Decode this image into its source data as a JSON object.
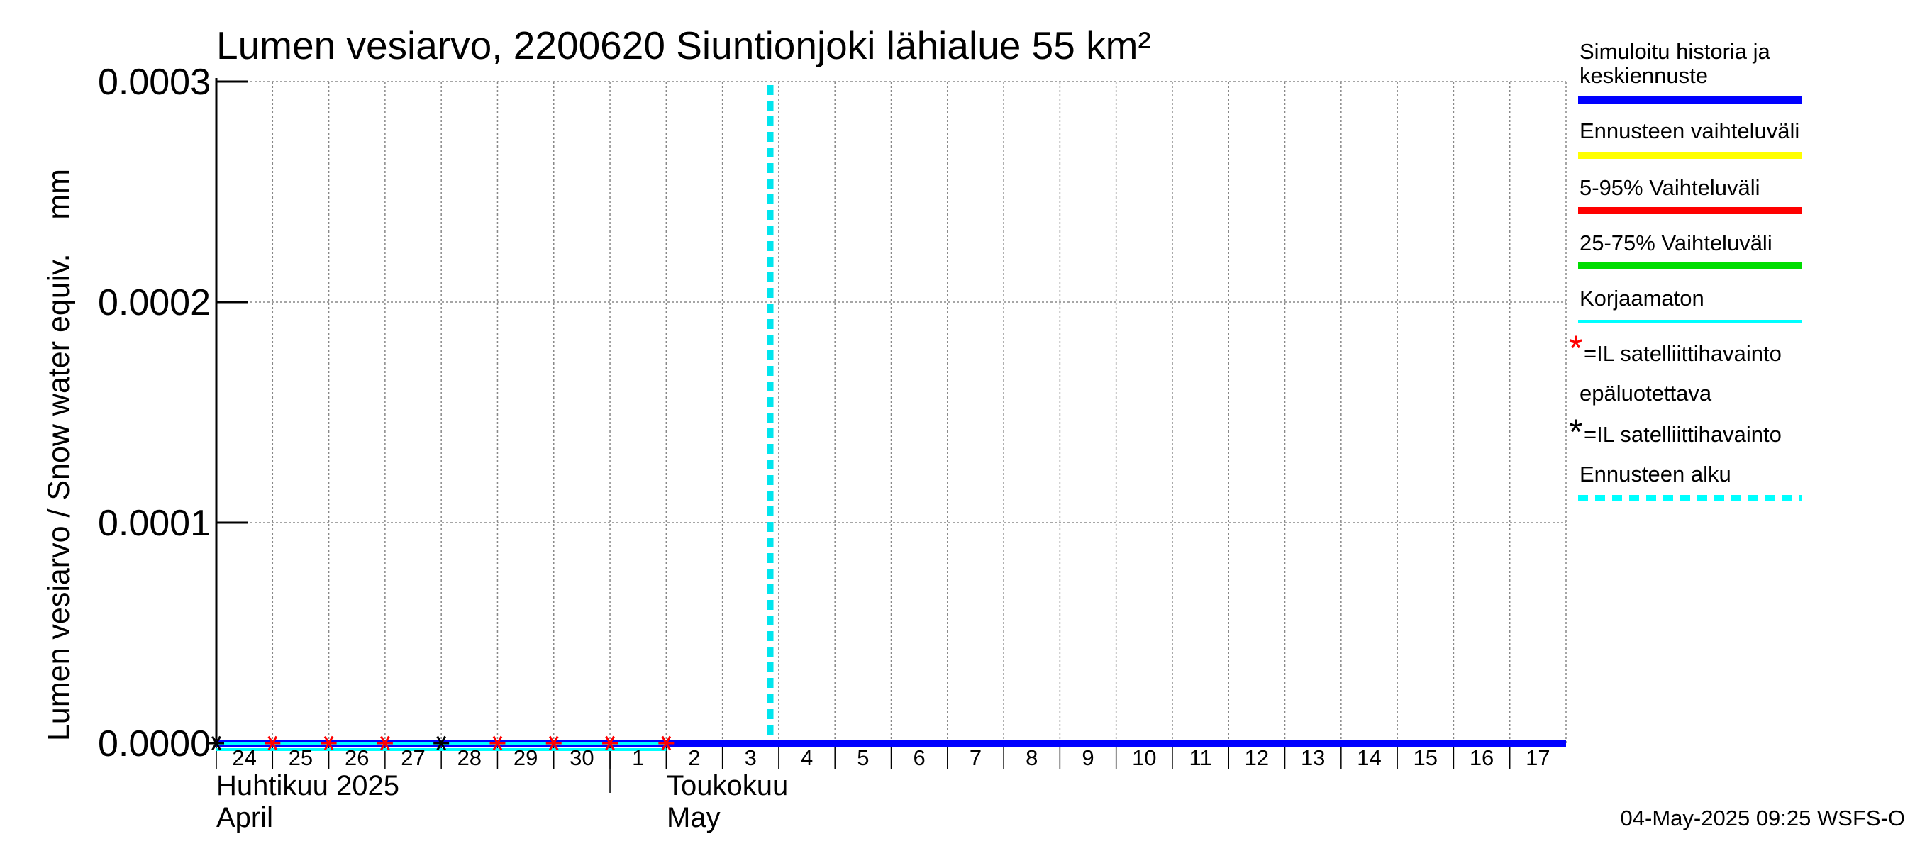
{
  "chart_data": {
    "type": "line",
    "title": "Lumen vesiarvo, 2200620 Siuntionjoki lähialue 55 km²",
    "ylabel": "Lumen vesiarvo / Snow water equiv.    mm",
    "ylim": [
      0,
      0.0003
    ],
    "yticks": [
      "0.0000",
      "0.0001",
      "0.0002",
      "0.0003"
    ],
    "ytick_values": [
      0,
      0.0001,
      0.0002,
      0.0003
    ],
    "x_start": "2025-04-24",
    "x_end": "2025-05-18",
    "day_ticks": [
      {
        "date": "2025-04-24",
        "label": "24"
      },
      {
        "date": "2025-04-25",
        "label": "25"
      },
      {
        "date": "2025-04-26",
        "label": "26"
      },
      {
        "date": "2025-04-27",
        "label": "27"
      },
      {
        "date": "2025-04-28",
        "label": "28"
      },
      {
        "date": "2025-04-29",
        "label": "29"
      },
      {
        "date": "2025-04-30",
        "label": "30"
      },
      {
        "date": "2025-05-01",
        "label": "1"
      },
      {
        "date": "2025-05-02",
        "label": "2"
      },
      {
        "date": "2025-05-03",
        "label": "3"
      },
      {
        "date": "2025-05-04",
        "label": "4"
      },
      {
        "date": "2025-05-05",
        "label": "5"
      },
      {
        "date": "2025-05-06",
        "label": "6"
      },
      {
        "date": "2025-05-07",
        "label": "7"
      },
      {
        "date": "2025-05-08",
        "label": "8"
      },
      {
        "date": "2025-05-09",
        "label": "9"
      },
      {
        "date": "2025-05-10",
        "label": "10"
      },
      {
        "date": "2025-05-11",
        "label": "11"
      },
      {
        "date": "2025-05-12",
        "label": "12"
      },
      {
        "date": "2025-05-13",
        "label": "13"
      },
      {
        "date": "2025-05-14",
        "label": "14"
      },
      {
        "date": "2025-05-15",
        "label": "15"
      },
      {
        "date": "2025-05-16",
        "label": "16"
      },
      {
        "date": "2025-05-17",
        "label": "17"
      }
    ],
    "months": [
      {
        "label_fi": "Huhtikuu  2025",
        "label_en": "April",
        "date": "2025-04-24"
      },
      {
        "label_fi": "Toukokuu",
        "label_en": "May",
        "date": "2025-05-01"
      }
    ],
    "grid": true,
    "forecast_start": "2025-05-04",
    "series": [
      {
        "name": "Simuloitu historia ja keskiennuste",
        "color": "#0000ff",
        "x": [
          "2025-04-24",
          "2025-05-18"
        ],
        "y": [
          0,
          0
        ]
      },
      {
        "name": "Korjaamaton",
        "color": "#00ffff",
        "x": [
          "2025-04-24",
          "2025-05-02"
        ],
        "y": [
          0,
          0
        ]
      }
    ],
    "observations_reliable": {
      "color": "#ff0000",
      "x": [
        "2025-04-25",
        "2025-04-26",
        "2025-04-27",
        "2025-04-29",
        "2025-04-30",
        "2025-05-01",
        "2025-05-02"
      ],
      "y": [
        0,
        0,
        0,
        0,
        0,
        0,
        0
      ]
    },
    "observations_unreliable": {
      "color": "#000000",
      "x": [
        "2025-04-24",
        "2025-04-28"
      ],
      "y": [
        0,
        0
      ]
    }
  },
  "legend": {
    "items": [
      {
        "label": "Simuloitu historia ja\nkeskiennuste",
        "color": "#0000ff"
      },
      {
        "label": "Ennusteen vaihteluväli",
        "color": "#ffff00"
      },
      {
        "label": "5-95% Vaihteluväli",
        "color": "#ff0000"
      },
      {
        "label": "25-75% Vaihteluväli",
        "color": "#00dd00"
      },
      {
        "label": "Korjaamaton",
        "color": "#00ffff"
      },
      {
        "label": "=IL satelliittihavainto",
        "color": "#ff0000",
        "marker": "*"
      },
      {
        "label": "epäluotettava",
        "color": "",
        "marker": ""
      },
      {
        "label": "=IL satelliittihavainto",
        "color": "#000000",
        "marker": "*"
      },
      {
        "label": "Ennusteen alku",
        "color": "#00ffff"
      }
    ]
  },
  "footer": {
    "timestamp": "04-May-2025 09:25 WSFS-O"
  }
}
